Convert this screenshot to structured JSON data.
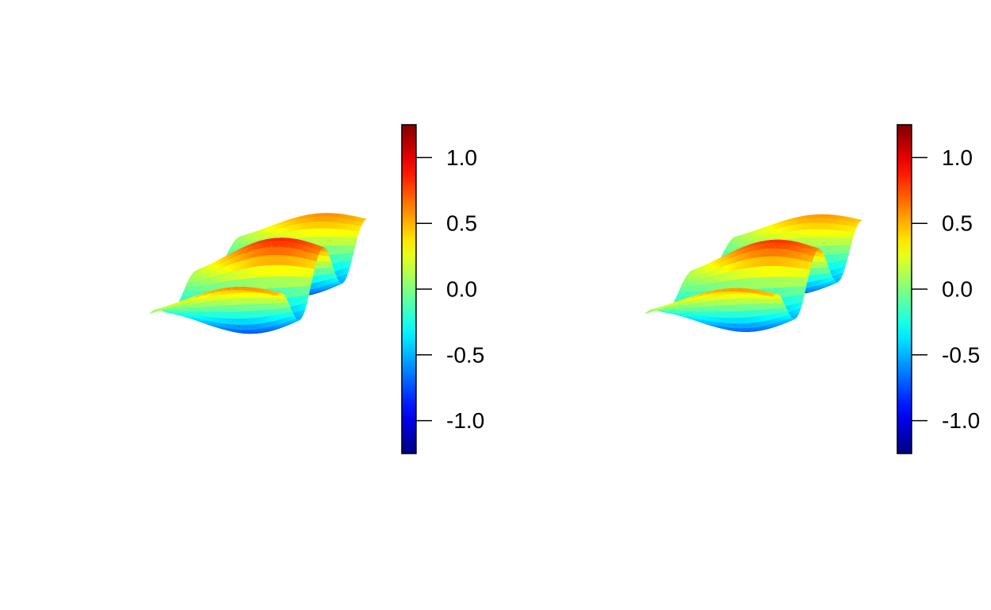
{
  "chart_data": [
    {
      "type": "surface3d",
      "colorscale": "jet",
      "colorbar": {
        "min": -1.25,
        "max": 1.25,
        "ticks": [
          {
            "value": 1.0,
            "label": "1.0"
          },
          {
            "value": 0.5,
            "label": "0.5"
          },
          {
            "value": 0.0,
            "label": "0.0"
          },
          {
            "value": -0.5,
            "label": "-0.5"
          },
          {
            "value": -1.0,
            "label": "-1.0"
          }
        ]
      },
      "surface": {
        "function": "exp(-(x^2+y^2)/2) * sin(6x) * cos(4y) + ridge",
        "x_range": [
          -2,
          2
        ],
        "y_range": [
          -2,
          2
        ],
        "z_range": [
          -1.25,
          1.25
        ]
      }
    },
    {
      "type": "surface3d",
      "colorscale": "jet",
      "colorbar": {
        "min": -1.25,
        "max": 1.25,
        "ticks": [
          {
            "value": 1.0,
            "label": "1.0"
          },
          {
            "value": 0.5,
            "label": "0.5"
          },
          {
            "value": 0.0,
            "label": "0.0"
          },
          {
            "value": -0.5,
            "label": "-0.5"
          },
          {
            "value": -1.0,
            "label": "-1.0"
          }
        ]
      },
      "surface": {
        "function": "exp(-(x^2+y^2)/2) * sin(6x) * cos(4y) + ridge",
        "x_range": [
          -2,
          2
        ],
        "y_range": [
          -2,
          2
        ],
        "z_range": [
          -1.25,
          1.25
        ]
      }
    }
  ]
}
